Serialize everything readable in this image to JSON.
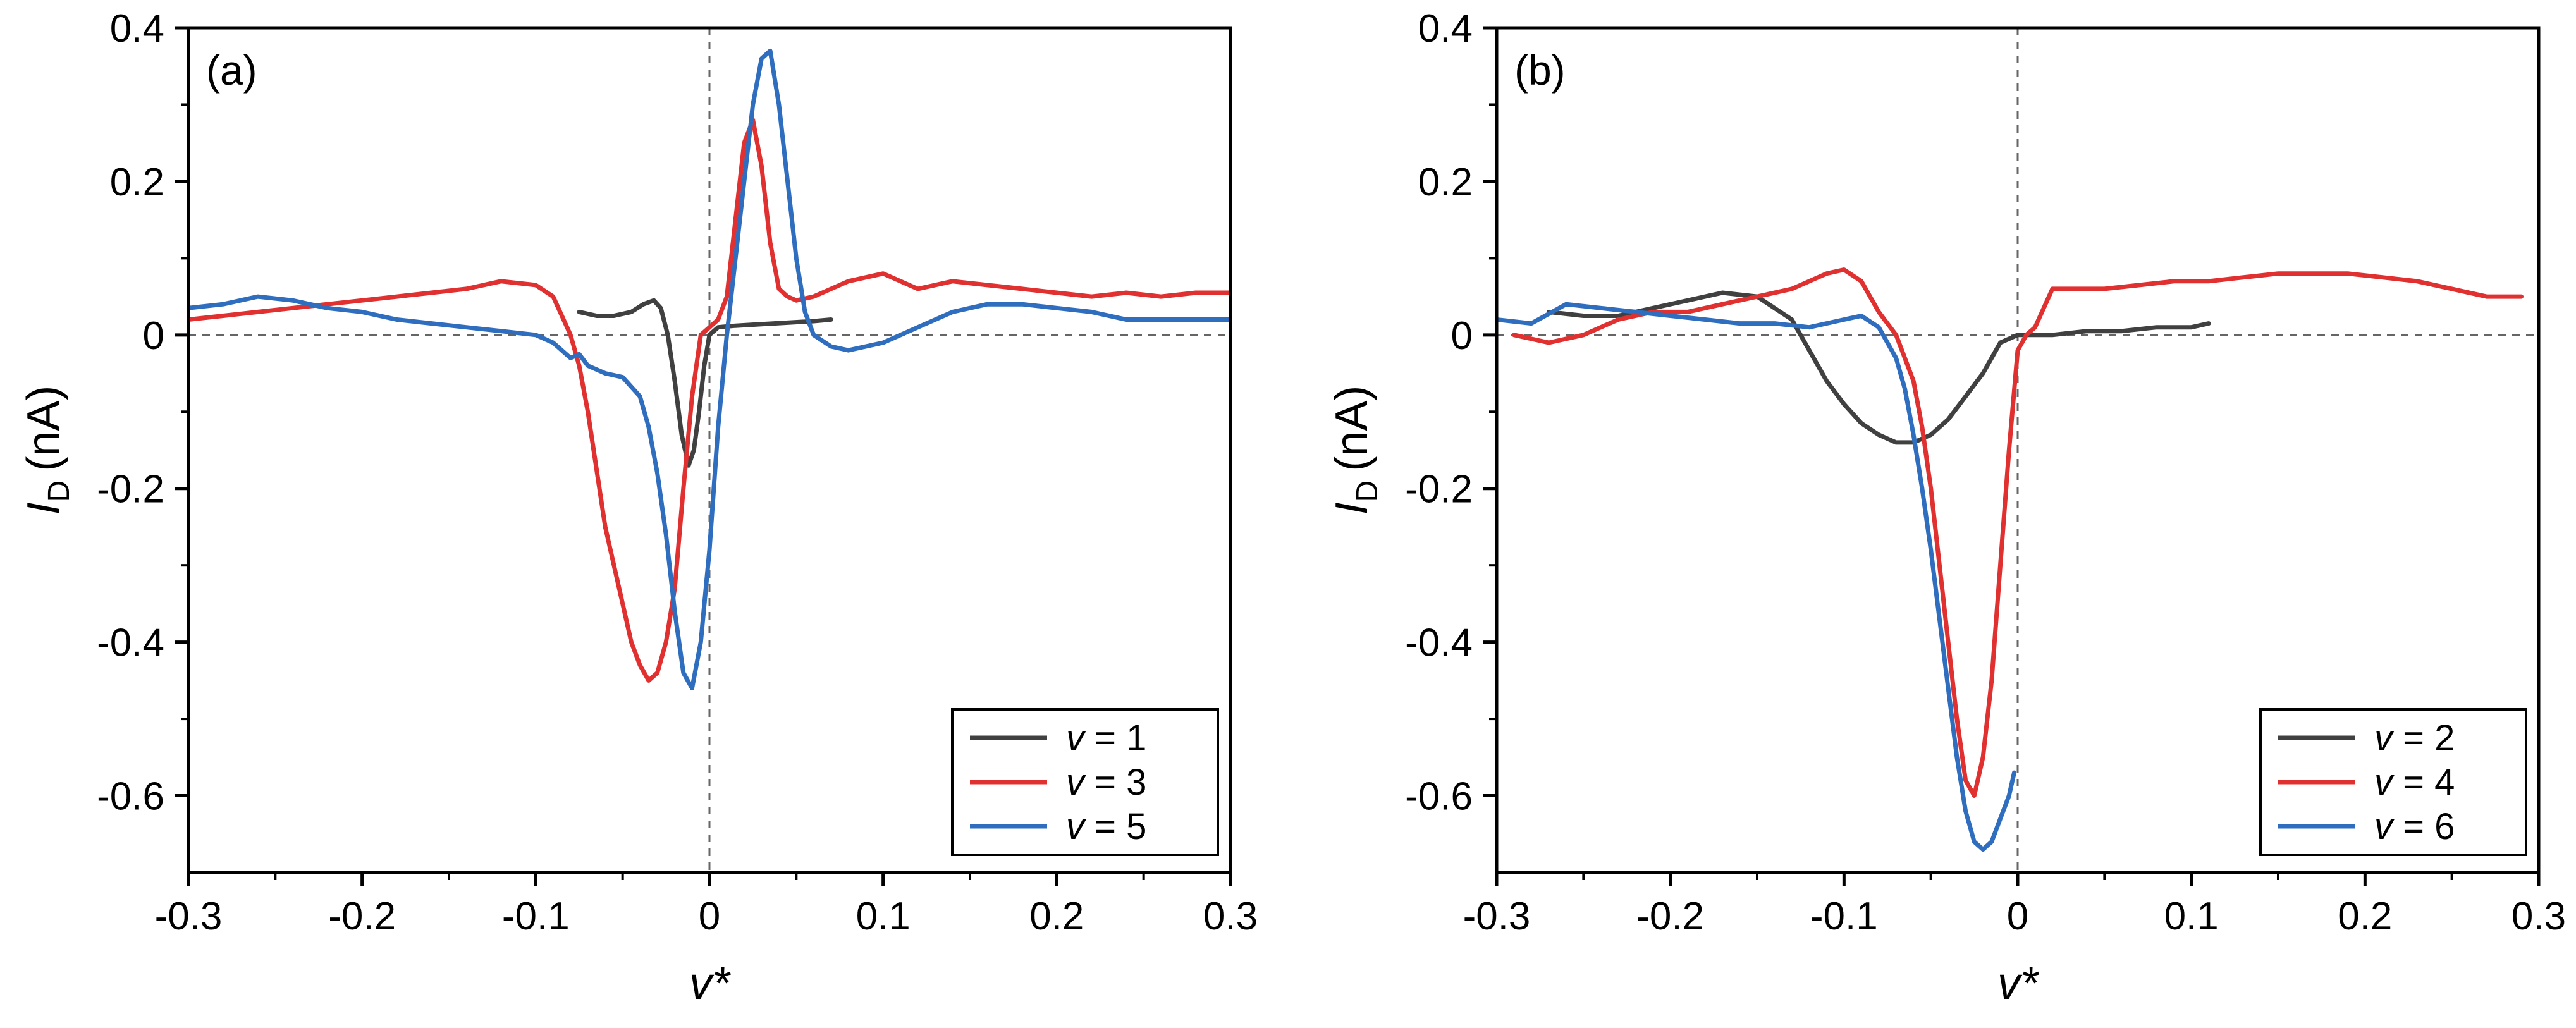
{
  "chart_data": [
    {
      "type": "line",
      "panel_label": "(a)",
      "xlabel": "v*",
      "ylabel": {
        "symbol": "I",
        "subscript": "D",
        "unit": "(nA)"
      },
      "xlim": [
        -0.3,
        0.3
      ],
      "ylim": [
        -0.7,
        0.4
      ],
      "xticks": [
        -0.3,
        -0.2,
        -0.1,
        0,
        0.1,
        0.2,
        0.3
      ],
      "xtick_labels": [
        "-0.3",
        "-0.2",
        "-0.1",
        "0",
        "0.1",
        "0.2",
        "0.3"
      ],
      "yticks": [
        -0.6,
        -0.4,
        -0.2,
        0,
        0.2,
        0.4
      ],
      "ytick_labels": [
        "-0.6",
        "-0.4",
        "-0.2",
        "0",
        "0.2",
        "0.4"
      ],
      "reference_lines": {
        "x": 0,
        "y": 0,
        "style": "dashed"
      },
      "legend_position": "bottom-right",
      "grid": false,
      "series": [
        {
          "name": "v = 1",
          "color": "#404040",
          "x": [
            -0.075,
            -0.065,
            -0.055,
            -0.045,
            -0.038,
            -0.032,
            -0.028,
            -0.024,
            -0.02,
            -0.016,
            -0.012,
            -0.009,
            -0.006,
            -0.003,
            0,
            0.005,
            0.015,
            0.03,
            0.045,
            0.06,
            0.07
          ],
          "y": [
            0.03,
            0.025,
            0.025,
            0.03,
            0.04,
            0.045,
            0.035,
            0.0,
            -0.06,
            -0.13,
            -0.17,
            -0.15,
            -0.1,
            -0.04,
            0.0,
            0.01,
            0.012,
            0.014,
            0.016,
            0.018,
            0.02
          ]
        },
        {
          "name": "v = 3",
          "color": "#e03030",
          "x": [
            -0.3,
            -0.28,
            -0.26,
            -0.24,
            -0.22,
            -0.2,
            -0.18,
            -0.16,
            -0.14,
            -0.12,
            -0.1,
            -0.09,
            -0.08,
            -0.075,
            -0.07,
            -0.06,
            -0.05,
            -0.045,
            -0.04,
            -0.035,
            -0.03,
            -0.025,
            -0.02,
            -0.015,
            -0.01,
            -0.005,
            0,
            0.005,
            0.01,
            0.015,
            0.02,
            0.025,
            0.03,
            0.035,
            0.04,
            0.045,
            0.05,
            0.06,
            0.07,
            0.08,
            0.1,
            0.12,
            0.14,
            0.16,
            0.18,
            0.2,
            0.22,
            0.24,
            0.26,
            0.28,
            0.3
          ],
          "y": [
            0.02,
            0.025,
            0.03,
            0.035,
            0.04,
            0.045,
            0.05,
            0.055,
            0.06,
            0.07,
            0.065,
            0.05,
            0.0,
            -0.04,
            -0.1,
            -0.25,
            -0.35,
            -0.4,
            -0.43,
            -0.45,
            -0.44,
            -0.4,
            -0.33,
            -0.2,
            -0.08,
            0.0,
            0.01,
            0.02,
            0.05,
            0.15,
            0.25,
            0.28,
            0.22,
            0.12,
            0.06,
            0.05,
            0.045,
            0.05,
            0.06,
            0.07,
            0.08,
            0.06,
            0.07,
            0.065,
            0.06,
            0.055,
            0.05,
            0.055,
            0.05,
            0.055,
            0.055
          ]
        },
        {
          "name": "v = 5",
          "color": "#2f6dbf",
          "x": [
            -0.3,
            -0.28,
            -0.26,
            -0.24,
            -0.22,
            -0.2,
            -0.18,
            -0.16,
            -0.14,
            -0.12,
            -0.1,
            -0.09,
            -0.08,
            -0.075,
            -0.07,
            -0.06,
            -0.05,
            -0.04,
            -0.035,
            -0.03,
            -0.025,
            -0.02,
            -0.015,
            -0.01,
            -0.005,
            0,
            0.005,
            0.01,
            0.015,
            0.02,
            0.025,
            0.03,
            0.035,
            0.04,
            0.045,
            0.05,
            0.055,
            0.06,
            0.07,
            0.08,
            0.1,
            0.12,
            0.14,
            0.16,
            0.18,
            0.2,
            0.22,
            0.24,
            0.26,
            0.28,
            0.3
          ],
          "y": [
            0.035,
            0.04,
            0.05,
            0.045,
            0.035,
            0.03,
            0.02,
            0.015,
            0.01,
            0.005,
            0.0,
            -0.01,
            -0.03,
            -0.025,
            -0.04,
            -0.05,
            -0.055,
            -0.08,
            -0.12,
            -0.18,
            -0.26,
            -0.36,
            -0.44,
            -0.46,
            -0.4,
            -0.28,
            -0.12,
            0.0,
            0.1,
            0.2,
            0.3,
            0.36,
            0.37,
            0.3,
            0.2,
            0.1,
            0.03,
            0.0,
            -0.015,
            -0.02,
            -0.01,
            0.01,
            0.03,
            0.04,
            0.04,
            0.035,
            0.03,
            0.02,
            0.02,
            0.02,
            0.02
          ]
        }
      ]
    },
    {
      "type": "line",
      "panel_label": "(b)",
      "xlabel": "v*",
      "ylabel": {
        "symbol": "I",
        "subscript": "D",
        "unit": "(nA)"
      },
      "xlim": [
        -0.3,
        0.3
      ],
      "ylim": [
        -0.7,
        0.4
      ],
      "xticks": [
        -0.3,
        -0.2,
        -0.1,
        0,
        0.1,
        0.2,
        0.3
      ],
      "xtick_labels": [
        "-0.3",
        "-0.2",
        "-0.1",
        "0",
        "0.1",
        "0.2",
        "0.3"
      ],
      "yticks": [
        -0.6,
        -0.4,
        -0.2,
        0,
        0.2,
        0.4
      ],
      "ytick_labels": [
        "-0.6",
        "-0.4",
        "-0.2",
        "0",
        "0.2",
        "0.4"
      ],
      "reference_lines": {
        "x": 0,
        "y": 0,
        "style": "dashed"
      },
      "legend_position": "bottom-right",
      "grid": false,
      "series": [
        {
          "name": "v = 2",
          "color": "#404040",
          "x": [
            -0.27,
            -0.25,
            -0.23,
            -0.21,
            -0.19,
            -0.17,
            -0.15,
            -0.13,
            -0.12,
            -0.11,
            -0.1,
            -0.09,
            -0.08,
            -0.07,
            -0.06,
            -0.05,
            -0.04,
            -0.03,
            -0.02,
            -0.01,
            0,
            0.02,
            0.04,
            0.06,
            0.08,
            0.1,
            0.11
          ],
          "y": [
            0.03,
            0.025,
            0.025,
            0.035,
            0.045,
            0.055,
            0.05,
            0.02,
            -0.02,
            -0.06,
            -0.09,
            -0.115,
            -0.13,
            -0.14,
            -0.14,
            -0.13,
            -0.11,
            -0.08,
            -0.05,
            -0.01,
            0.0,
            0.0,
            0.005,
            0.005,
            0.01,
            0.01,
            0.015
          ]
        },
        {
          "name": "v = 4",
          "color": "#e03030",
          "x": [
            -0.29,
            -0.27,
            -0.25,
            -0.23,
            -0.21,
            -0.19,
            -0.17,
            -0.15,
            -0.13,
            -0.11,
            -0.1,
            -0.09,
            -0.08,
            -0.07,
            -0.065,
            -0.06,
            -0.055,
            -0.05,
            -0.045,
            -0.04,
            -0.035,
            -0.03,
            -0.025,
            -0.02,
            -0.015,
            -0.01,
            -0.005,
            0,
            0.005,
            0.01,
            0.02,
            0.03,
            0.05,
            0.07,
            0.09,
            0.11,
            0.13,
            0.15,
            0.17,
            0.19,
            0.21,
            0.23,
            0.25,
            0.27,
            0.29
          ],
          "y": [
            0.0,
            -0.01,
            0.0,
            0.02,
            0.03,
            0.03,
            0.04,
            0.05,
            0.06,
            0.08,
            0.085,
            0.07,
            0.03,
            0.0,
            -0.03,
            -0.06,
            -0.12,
            -0.2,
            -0.3,
            -0.4,
            -0.5,
            -0.58,
            -0.6,
            -0.55,
            -0.45,
            -0.3,
            -0.15,
            -0.02,
            0.0,
            0.01,
            0.06,
            0.06,
            0.06,
            0.065,
            0.07,
            0.07,
            0.075,
            0.08,
            0.08,
            0.08,
            0.075,
            0.07,
            0.06,
            0.05,
            0.05
          ]
        },
        {
          "name": "v = 6",
          "color": "#2f6dbf",
          "x": [
            -0.3,
            -0.28,
            -0.26,
            -0.24,
            -0.22,
            -0.2,
            -0.18,
            -0.16,
            -0.14,
            -0.12,
            -0.1,
            -0.09,
            -0.08,
            -0.07,
            -0.065,
            -0.06,
            -0.055,
            -0.05,
            -0.045,
            -0.04,
            -0.035,
            -0.03,
            -0.025,
            -0.02,
            -0.015,
            -0.01,
            -0.005,
            -0.002
          ],
          "y": [
            0.02,
            0.015,
            0.04,
            0.035,
            0.03,
            0.025,
            0.02,
            0.015,
            0.015,
            0.01,
            0.02,
            0.025,
            0.01,
            -0.03,
            -0.07,
            -0.13,
            -0.2,
            -0.28,
            -0.37,
            -0.46,
            -0.55,
            -0.62,
            -0.66,
            -0.67,
            -0.66,
            -0.63,
            -0.6,
            -0.57
          ]
        }
      ]
    }
  ]
}
